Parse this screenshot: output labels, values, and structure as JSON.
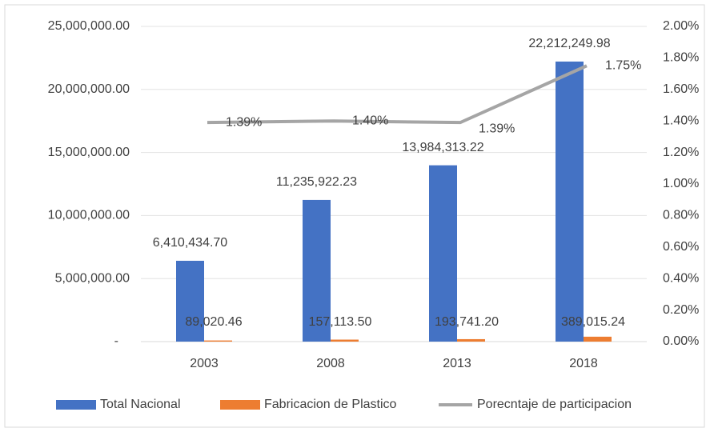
{
  "chart_data": {
    "type": "bar-line",
    "categories": [
      "2003",
      "2008",
      "2013",
      "2018"
    ],
    "series": [
      {
        "name": "Total Nacional",
        "color": "#4472c4",
        "type": "bar",
        "values": [
          6410434.7,
          11235922.23,
          13984313.22,
          22212249.98
        ],
        "value_labels": [
          "6,410,434.70",
          "11,235,922.23",
          "13,984,313.22",
          "22,212,249.98"
        ]
      },
      {
        "name": "Fabricacion de Plastico",
        "color": "#ed7d31",
        "type": "bar",
        "values": [
          89020.46,
          157113.5,
          193741.2,
          389015.24
        ],
        "value_labels": [
          "89,020.46",
          "157,113.50",
          "193,741.20",
          "389,015.24"
        ]
      },
      {
        "name": "Porecntaje de participacion",
        "color": "#a5a5a5",
        "type": "line",
        "axis": "y2",
        "values": [
          1.39,
          1.4,
          1.39,
          1.75
        ],
        "value_labels": [
          "1.39%",
          "1.40%",
          "1.39%",
          "1.75%"
        ]
      }
    ],
    "ylim": [
      0,
      25000000
    ],
    "yticks": [
      {
        "value": 0,
        "label": "-"
      },
      {
        "value": 5000000,
        "label": "5,000,000.00"
      },
      {
        "value": 10000000,
        "label": "10,000,000.00"
      },
      {
        "value": 15000000,
        "label": "15,000,000.00"
      },
      {
        "value": 20000000,
        "label": "20,000,000.00"
      },
      {
        "value": 25000000,
        "label": "25,000,000.00"
      }
    ],
    "y2lim": [
      0,
      2
    ],
    "y2ticks": [
      {
        "value": 0,
        "label": "0.00%"
      },
      {
        "value": 0.2,
        "label": "0.20%"
      },
      {
        "value": 0.4,
        "label": "0.40%"
      },
      {
        "value": 0.6,
        "label": "0.60%"
      },
      {
        "value": 0.8,
        "label": "0.80%"
      },
      {
        "value": 1.0,
        "label": "1.00%"
      },
      {
        "value": 1.2,
        "label": "1.20%"
      },
      {
        "value": 1.4,
        "label": "1.40%"
      },
      {
        "value": 1.6,
        "label": "1.60%"
      },
      {
        "value": 1.8,
        "label": "1.80%"
      },
      {
        "value": 2.0,
        "label": "2.00%"
      }
    ],
    "grid": true,
    "legend": "bottom"
  }
}
